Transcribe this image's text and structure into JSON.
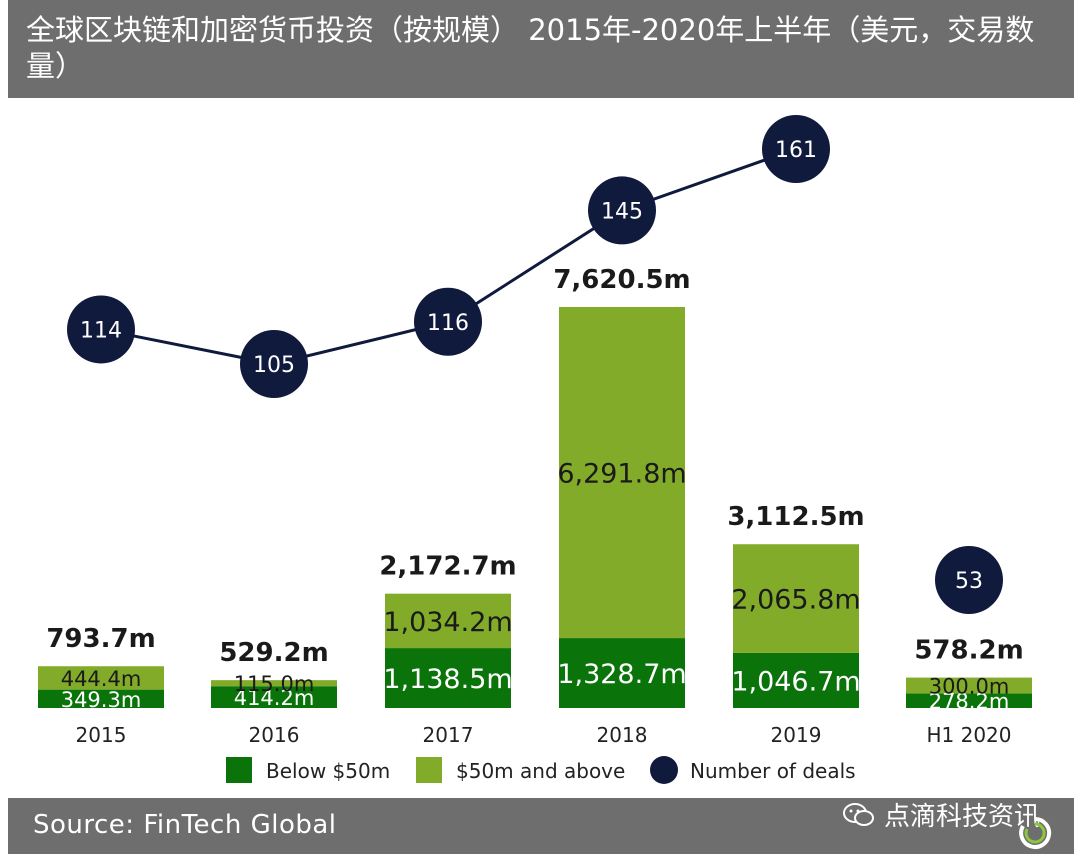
{
  "title": "全球区块链和加密货币投资（按规模） 2015年-2020年上半年（美元，交易数量）",
  "source": "Source: FinTech Global",
  "watermark": "点滴科技资讯",
  "colors": {
    "header_bg": "#6e6e6e",
    "below": "#0a740a",
    "above": "#83ab2a",
    "deals": "#0f1a3c",
    "label_dark": "#1a1a1a"
  },
  "chart_data": {
    "type": "bar",
    "stacked": true,
    "categories": [
      "2015",
      "2016",
      "2017",
      "2018",
      "2019",
      "H1 2020"
    ],
    "series": [
      {
        "name": "Below $50m",
        "values": [
          349.3,
          414.2,
          1138.5,
          1328.7,
          1046.7,
          278.2
        ],
        "labels": [
          "349.3m",
          "414.2m",
          "1,138.5m",
          "1,328.7m",
          "1,046.7m",
          "278.2m"
        ]
      },
      {
        "name": "$50m and above",
        "values": [
          444.4,
          115.0,
          1034.2,
          6291.8,
          2065.8,
          300.0
        ],
        "labels": [
          "444.4m",
          "115.0m",
          "1,034.2m",
          "6,291.8m",
          "2,065.8m",
          "300.0m"
        ]
      }
    ],
    "totals": [
      793.7,
      529.2,
      2172.7,
      7620.5,
      3112.5,
      578.2
    ],
    "total_labels": [
      "793.7m",
      "529.2m",
      "2,172.7m",
      "7,620.5m",
      "3,112.5m",
      "578.2m"
    ],
    "line_series": {
      "name": "Number of deals",
      "values": [
        114,
        105,
        116,
        145,
        161,
        53
      ]
    },
    "legend": [
      "Below $50m",
      "$50m and above",
      "Number of deals"
    ],
    "legend_position": "bottom",
    "grid": false
  }
}
